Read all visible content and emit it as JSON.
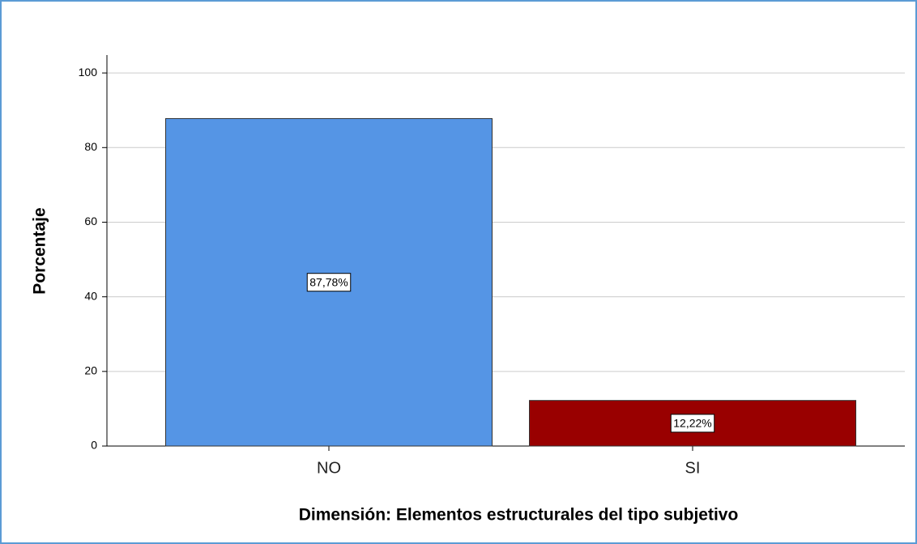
{
  "chart_data": {
    "type": "bar",
    "categories": [
      "NO",
      "SI"
    ],
    "values": [
      87.78,
      12.22
    ],
    "value_labels": [
      "87,78%",
      "12,22%"
    ],
    "colors": [
      "#5595e5",
      "#990000"
    ],
    "ylabel": "Porcentaje",
    "xlabel": "Dimensión: Elementos estructurales del tipo subjetivo",
    "ylim": [
      0,
      104.8
    ],
    "yticks": [
      0,
      20,
      40,
      60,
      80,
      100
    ],
    "grid": true
  }
}
